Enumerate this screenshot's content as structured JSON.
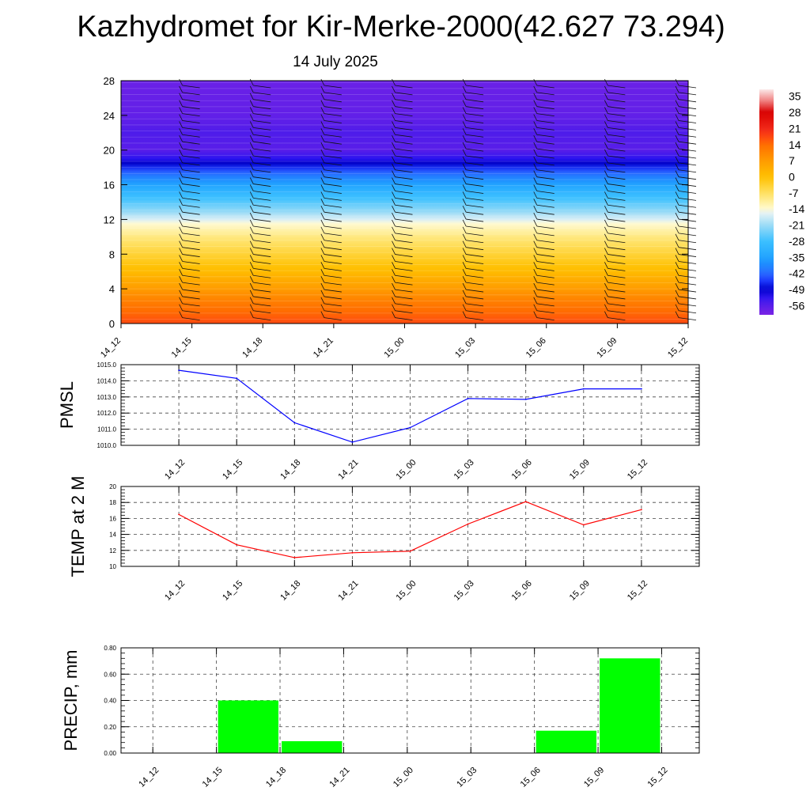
{
  "title": "Kazhydromet for Kir-Merke-2000(42.627 73.294)",
  "subtitle": "14 July 2025",
  "chart_data": [
    {
      "type": "heatmap",
      "name": "height-time cross section (temperature and wind barbs)",
      "x": [
        "14_12",
        "14_15",
        "14_18",
        "14_21",
        "15_00",
        "15_03",
        "15_06",
        "15_09",
        "15_12"
      ],
      "y_ticks": [
        0,
        4,
        8,
        12,
        16,
        20,
        24,
        28
      ],
      "ylim": [
        0,
        28
      ],
      "colorbar": {
        "labels": [
          "35",
          "28",
          "21",
          "14",
          "7",
          "0",
          "-7",
          "-14",
          "-21",
          "-28",
          "-35",
          "-42",
          "-49",
          "-56"
        ],
        "range": [
          -60,
          38
        ]
      },
      "temperature_profile": [
        {
          "level": 0,
          "value": 17
        },
        {
          "level": 2,
          "value": 13
        },
        {
          "level": 4,
          "value": 7
        },
        {
          "level": 6,
          "value": 1
        },
        {
          "level": 8,
          "value": -4
        },
        {
          "level": 10,
          "value": -9
        },
        {
          "level": 11.5,
          "value": -14
        },
        {
          "level": 13,
          "value": -22
        },
        {
          "level": 15,
          "value": -30
        },
        {
          "level": 17,
          "value": -40
        },
        {
          "level": 19,
          "value": -52
        },
        {
          "level": 20,
          "value": -56
        },
        {
          "level": 22,
          "value": -55
        },
        {
          "level": 24,
          "value": -57
        },
        {
          "level": 28,
          "value": -58
        }
      ]
    },
    {
      "type": "line",
      "ylabel": "PMSL",
      "categories": [
        "14_12",
        "14_15",
        "14_18",
        "14_21",
        "15_00",
        "15_03",
        "15_06",
        "15_09",
        "15_12"
      ],
      "values": [
        1014.65,
        1014.15,
        1011.4,
        1010.2,
        1011.1,
        1012.9,
        1012.85,
        1013.5,
        1013.5
      ],
      "yticks": [
        "1010.0",
        "1011.0",
        "1012.0",
        "1013.0",
        "1014.0",
        "1015.0"
      ],
      "ylim": [
        1010,
        1015
      ],
      "color": "#0000ff"
    },
    {
      "type": "line",
      "ylabel": "TEMP at 2 M",
      "categories": [
        "14_12",
        "14_15",
        "14_18",
        "14_21",
        "15_00",
        "15_03",
        "15_06",
        "15_09",
        "15_12"
      ],
      "values": [
        16.5,
        12.7,
        11.1,
        11.7,
        11.9,
        15.3,
        18.1,
        15.2,
        17.1
      ],
      "yticks": [
        "10",
        "12",
        "14",
        "16",
        "18",
        "20"
      ],
      "ylim": [
        10,
        20
      ],
      "color": "#ff0000"
    },
    {
      "type": "bar",
      "ylabel": "PRECIP, mm",
      "categories": [
        "14_12",
        "14_15",
        "14_18",
        "14_21",
        "15_00",
        "15_03",
        "15_06",
        "15_09",
        "15_12"
      ],
      "values": [
        0,
        0.4,
        0.09,
        0,
        0,
        0,
        0.17,
        0.72,
        0
      ],
      "yticks": [
        "0.00",
        "0.20",
        "0.40",
        "0.60",
        "0.80"
      ],
      "ylim": [
        0,
        0.8
      ],
      "color": "#00ff00"
    }
  ]
}
